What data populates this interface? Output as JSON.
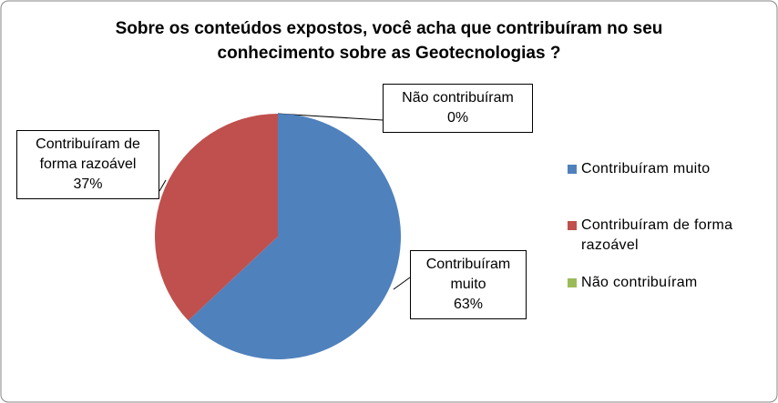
{
  "chart_data": {
    "type": "pie",
    "title": "Sobre os conteúdos expostos, você acha que contribuíram no seu conhecimento sobre as Geotecnologias ?",
    "categories": [
      "Contribuíram muito",
      "Contribuíram de forma razoável",
      "Não contribuíram"
    ],
    "values": [
      63,
      37,
      0
    ],
    "value_labels": [
      "63%",
      "37%",
      "0%"
    ],
    "colors": [
      "#4f81bd",
      "#c0504d",
      "#9bbb59"
    ],
    "legend": "right"
  }
}
